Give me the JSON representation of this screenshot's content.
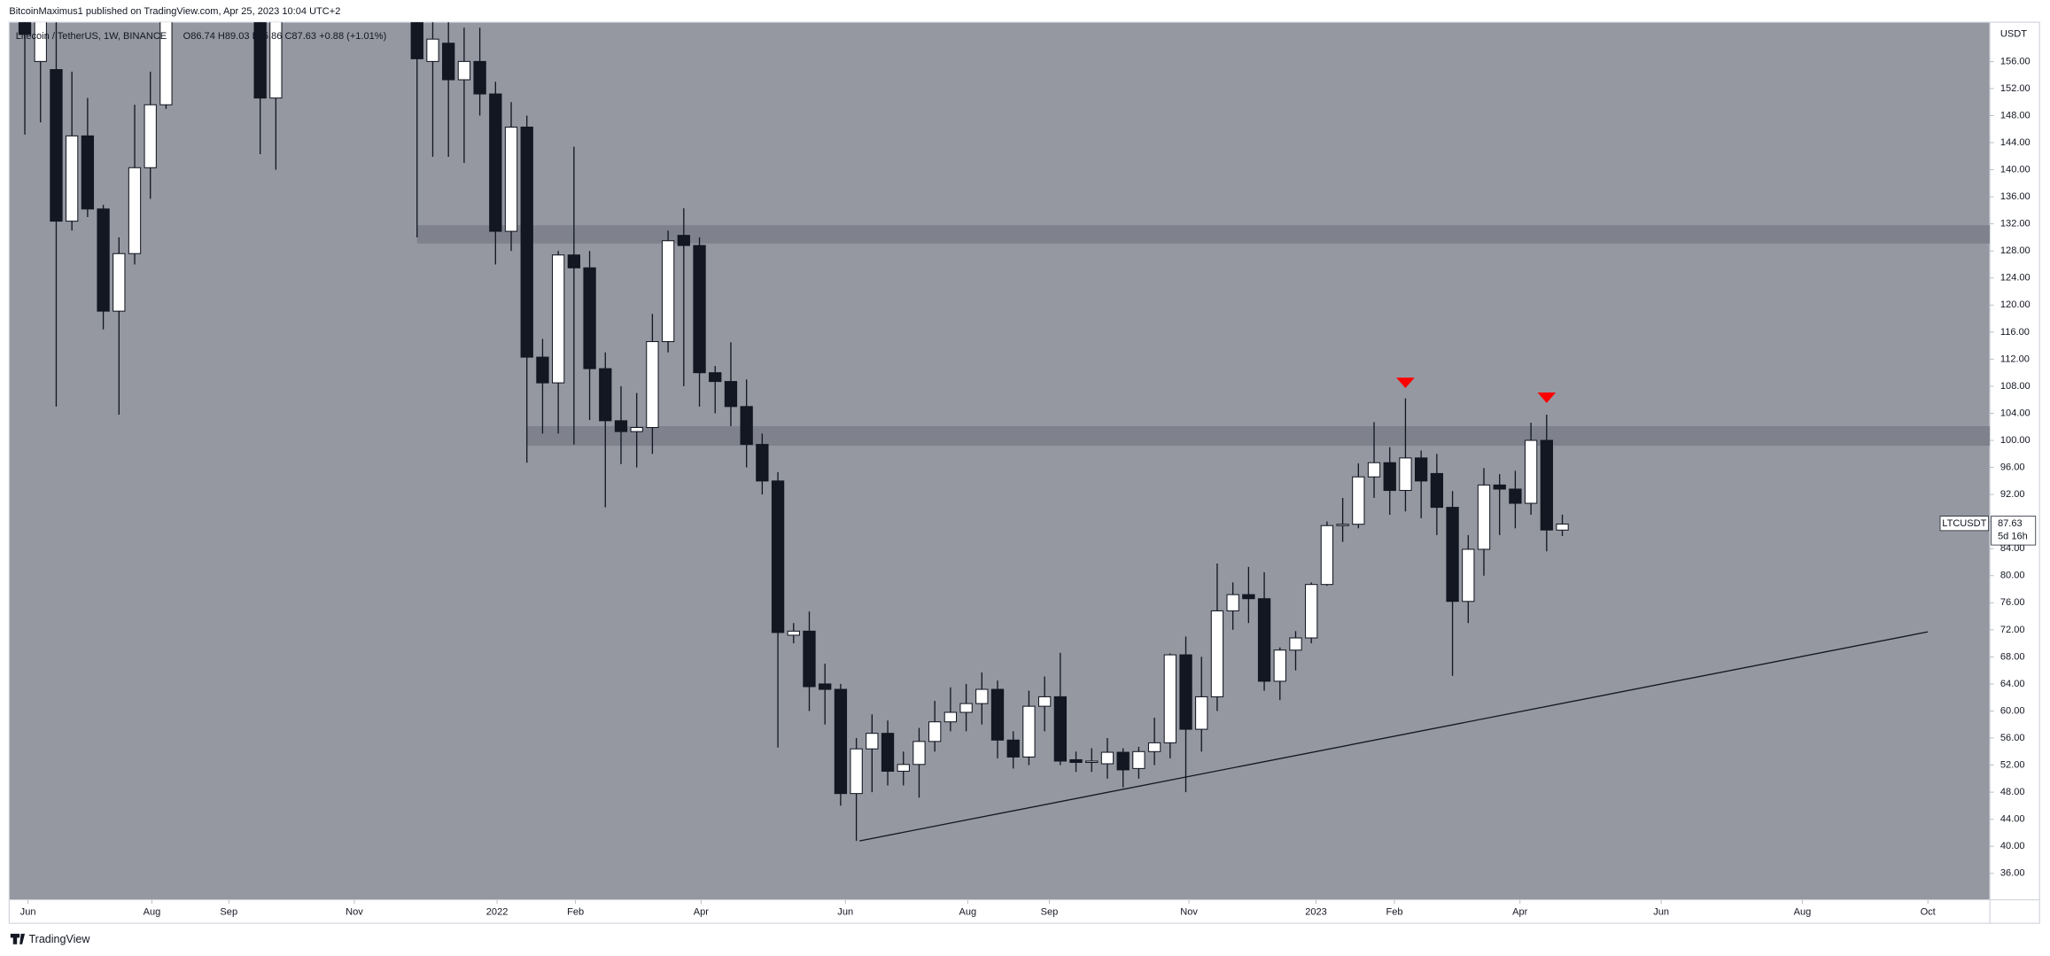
{
  "header": "BitcoinMaximus1 published on TradingView.com, Apr 25, 2023 10:04 UTC+2",
  "footer": "TradingView",
  "chart_data": {
    "type": "candlestick",
    "legend": "Litecoin / TetherUS, 1W, BINANCE",
    "ohlc_text": "O86.74 H89.03 L85.86 C87.63 +0.88 (+1.01%)",
    "y_axis_label": "USDT",
    "symbol": "LTCUSDT",
    "countdown": "5d 16h",
    "background": "#9598a1",
    "up_color": "#ffffff",
    "down_color": "#131722",
    "x": [
      0,
      1,
      2,
      3,
      4,
      5,
      6,
      7,
      8,
      9,
      15,
      16,
      25,
      26,
      27,
      28,
      29,
      30,
      31,
      32,
      33,
      34,
      35,
      36,
      37,
      38,
      39,
      40,
      41,
      42,
      43,
      44,
      45,
      46,
      47,
      48,
      49,
      50,
      51,
      52,
      53,
      54,
      55,
      56,
      57,
      58,
      59,
      60,
      61,
      62,
      63,
      64,
      65,
      66,
      67,
      68,
      69,
      70,
      71,
      72,
      73,
      74,
      75,
      76,
      77,
      78,
      79,
      80,
      81,
      82,
      83,
      84,
      85,
      86,
      87,
      88,
      89,
      90,
      91,
      92,
      93,
      94,
      95,
      96,
      97,
      98
    ],
    "open": [
      175,
      156,
      154.8,
      132.4,
      145,
      134.2,
      119.1,
      127.6,
      140.3,
      149.6,
      170,
      150.6,
      170,
      156,
      158.7,
      153.3,
      156,
      151.2,
      130.9,
      146.3,
      112.3,
      108.5,
      127.4,
      125.5,
      110.6,
      102.9,
      101.3,
      101.9,
      114.6,
      130.3,
      128.8,
      110,
      108.7,
      105,
      99.4,
      94,
      71.2,
      71.8,
      64,
      63.2,
      47.8,
      54.4,
      56.7,
      51.1,
      52.1,
      55.5,
      58.4,
      59.8,
      61.1,
      63.2,
      55.7,
      53.2,
      60.7,
      62.1,
      52.8,
      52.4,
      52.2,
      53.9,
      51.5,
      54,
      55.3,
      68.3,
      57.3,
      62.1,
      74.8,
      77.2,
      76.6,
      64.4,
      69,
      70.8,
      78.7,
      87.4,
      87.6,
      94.6,
      96.7,
      92.6,
      97.4,
      95.1,
      90.1,
      76.2,
      83.9,
      93.4,
      92.8,
      90.7,
      100,
      86.74
    ],
    "high": [
      180,
      166,
      162,
      154.5,
      150.6,
      134.8,
      130,
      149.6,
      154.5,
      170,
      175,
      175,
      172,
      165,
      162,
      161,
      161,
      153,
      150,
      148,
      115,
      128,
      143.4,
      128,
      113,
      108,
      107,
      118.7,
      131,
      134.3,
      130,
      111,
      114.5,
      109,
      101,
      95.3,
      73,
      74.7,
      67,
      64,
      56,
      59.5,
      58.6,
      54,
      57.5,
      61.5,
      63.5,
      64,
      65.7,
      64.5,
      57,
      63,
      65.1,
      68.6,
      54,
      54.5,
      56,
      54.5,
      54.7,
      59,
      68.5,
      71,
      68,
      81.8,
      79,
      81.3,
      80.5,
      69.4,
      71.8,
      79,
      88,
      91.5,
      96.6,
      102.7,
      99,
      106.2,
      98.5,
      98,
      92.5,
      86,
      95.9,
      95,
      95.5,
      102.6,
      103.8,
      89.03
    ],
    "low": [
      145.2,
      147,
      105,
      131,
      133,
      116.4,
      103.8,
      126,
      135.7,
      149,
      142.3,
      140,
      130,
      141.9,
      141.9,
      141,
      148,
      126,
      128,
      96.7,
      101,
      101,
      99.4,
      103,
      90.1,
      96.5,
      96,
      98,
      113,
      108,
      105,
      104,
      102.1,
      96,
      92,
      54.6,
      70,
      60,
      58,
      46,
      40.8,
      48,
      49,
      49,
      47.2,
      54,
      57,
      57,
      58,
      53,
      51.5,
      52,
      57,
      52,
      51,
      51,
      50,
      48.7,
      50,
      52,
      53,
      48,
      54,
      60,
      72,
      73,
      63,
      61.6,
      66,
      70,
      78.5,
      85,
      87,
      91.5,
      89,
      89.5,
      88.5,
      86,
      65.2,
      73,
      80,
      86,
      87,
      89,
      83.6,
      85.86
    ],
    "close": [
      160,
      165,
      132.4,
      145,
      134.2,
      119.1,
      127.6,
      140.3,
      149.6,
      163,
      150.6,
      172,
      156.4,
      159.3,
      153.3,
      156,
      151.2,
      130.9,
      146.3,
      112.3,
      108.5,
      127.4,
      125.5,
      110.6,
      102.9,
      101.3,
      101.9,
      114.6,
      129.5,
      128.8,
      110,
      108.7,
      105,
      99.4,
      94,
      71.6,
      71.8,
      63.6,
      63.2,
      47.8,
      54.4,
      56.7,
      51.1,
      52.1,
      55.5,
      58.4,
      59.8,
      61.1,
      63.2,
      55.7,
      53.2,
      60.7,
      62.1,
      52.6,
      52.4,
      52.6,
      53.9,
      51.3,
      54,
      55.3,
      68.3,
      57.3,
      62.1,
      74.8,
      77.2,
      76.6,
      64.4,
      69,
      70.8,
      78.7,
      87.4,
      87.6,
      94.6,
      96.7,
      92.6,
      97.4,
      94,
      90.1,
      76.2,
      83.9,
      93.4,
      92.8,
      90.7,
      100,
      86.75,
      87.63
    ],
    "xlim": [
      -1,
      125.25
    ],
    "ylim": [
      32.1,
      161.8
    ],
    "xticks": [
      {
        "value": 0.2,
        "label": "Jun"
      },
      {
        "value": 8.1,
        "label": "Aug"
      },
      {
        "value": 13,
        "label": "Sep"
      },
      {
        "value": 21,
        "label": "Nov"
      },
      {
        "value": 30.1,
        "label": "2022"
      },
      {
        "value": 35.1,
        "label": "Feb"
      },
      {
        "value": 43.1,
        "label": "Apr"
      },
      {
        "value": 52.3,
        "label": "Jun"
      },
      {
        "value": 60.1,
        "label": "Aug"
      },
      {
        "value": 65.3,
        "label": "Sep"
      },
      {
        "value": 74.2,
        "label": "Nov"
      },
      {
        "value": 82.3,
        "label": "2023"
      },
      {
        "value": 87.3,
        "label": "Feb"
      },
      {
        "value": 95.3,
        "label": "Apr"
      },
      {
        "value": 104.3,
        "label": "Jun"
      },
      {
        "value": 113.3,
        "label": "Aug"
      },
      {
        "value": 121.3,
        "label": "Oct"
      }
    ],
    "yticks": [
      {
        "value": 156,
        "label": "156.00"
      },
      {
        "value": 152,
        "label": "152.00"
      },
      {
        "value": 148,
        "label": "148.00"
      },
      {
        "value": 144,
        "label": "144.00"
      },
      {
        "value": 140,
        "label": "140.00"
      },
      {
        "value": 136,
        "label": "136.00"
      },
      {
        "value": 132,
        "label": "132.00"
      },
      {
        "value": 128,
        "label": "128.00"
      },
      {
        "value": 124,
        "label": "124.00"
      },
      {
        "value": 120,
        "label": "120.00"
      },
      {
        "value": 116,
        "label": "116.00"
      },
      {
        "value": 112,
        "label": "112.00"
      },
      {
        "value": 108,
        "label": "108.00"
      },
      {
        "value": 104,
        "label": "104.00"
      },
      {
        "value": 100,
        "label": "100.00"
      },
      {
        "value": 96,
        "label": "96.00"
      },
      {
        "value": 92,
        "label": "92.00"
      },
      {
        "value": 88,
        "label": "88.00"
      },
      {
        "value": 84,
        "label": "84.00"
      },
      {
        "value": 80,
        "label": "80.00"
      },
      {
        "value": 76,
        "label": "76.00"
      },
      {
        "value": 72,
        "label": "72.00"
      },
      {
        "value": 68,
        "label": "68.00"
      },
      {
        "value": 64,
        "label": "64.00"
      },
      {
        "value": 60,
        "label": "60.00"
      },
      {
        "value": 56,
        "label": "56.00"
      },
      {
        "value": 52,
        "label": "52.00"
      },
      {
        "value": 48,
        "label": "48.00"
      },
      {
        "value": 44,
        "label": "44.00"
      },
      {
        "value": 40,
        "label": "40.00"
      },
      {
        "value": 36,
        "label": "36.00"
      }
    ],
    "zones": [
      {
        "from_x": 25,
        "low": 129.1,
        "high": 131.8,
        "color": "#787b86"
      },
      {
        "from_x": 32,
        "low": 99.2,
        "high": 102.1,
        "color": "#787b86"
      }
    ],
    "trendline": {
      "x": [
        53.2,
        121.3
      ],
      "y": [
        40.8,
        71.7
      ],
      "color": "#131722"
    },
    "markers": {
      "x": [
        88,
        97
      ],
      "y": [
        108.5,
        106.3
      ],
      "color": "#ff0000"
    }
  }
}
